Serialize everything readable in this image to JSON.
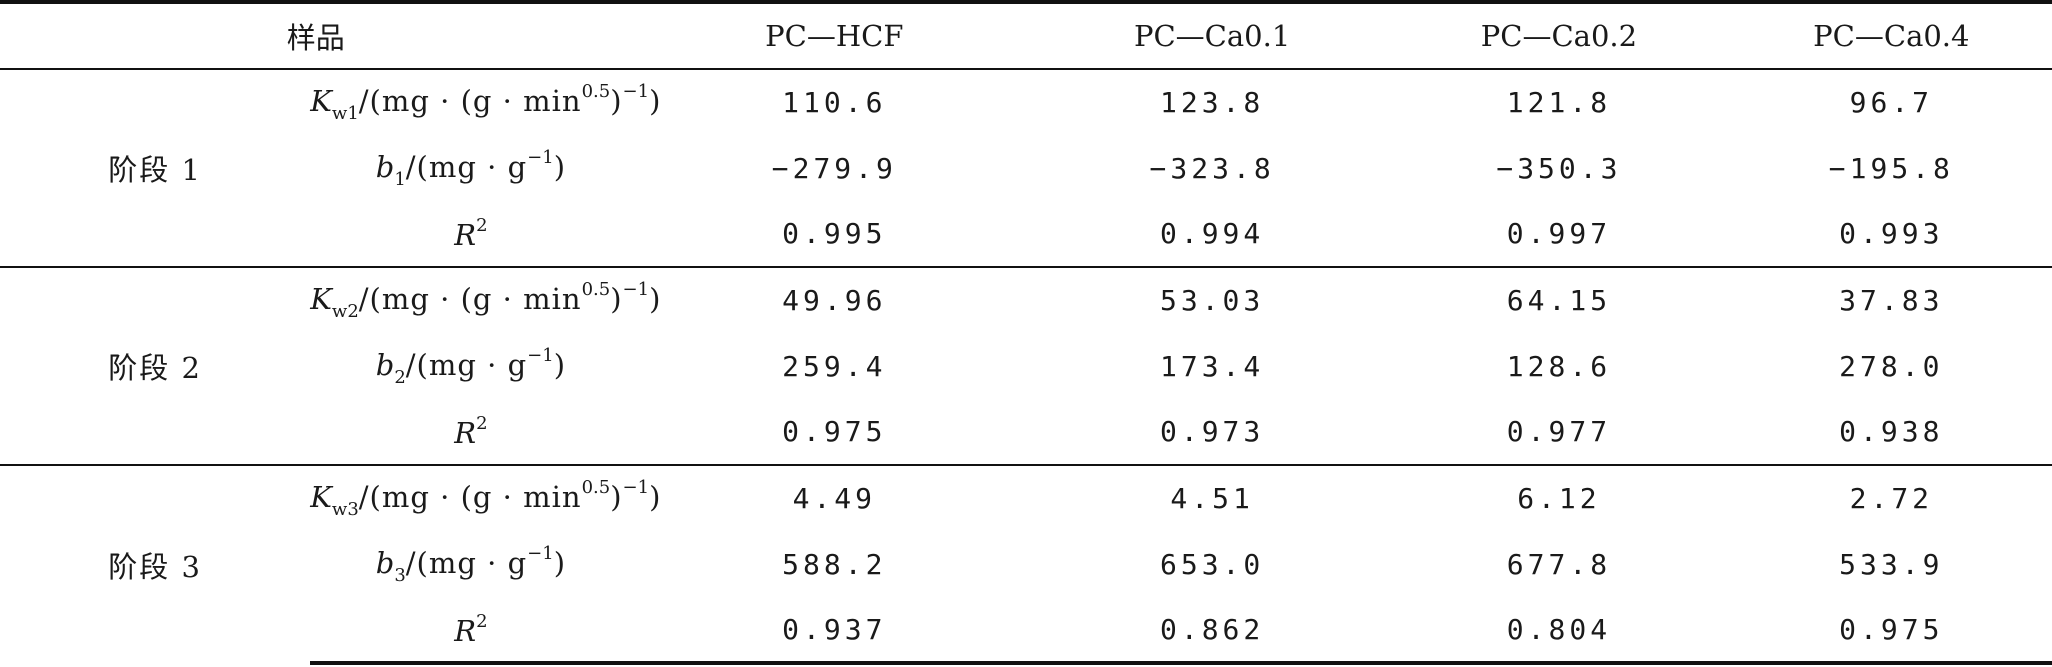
{
  "table": {
    "header": {
      "sample_label": "样品",
      "samples": [
        "PC—HCF",
        "PC—Ca0.1",
        "PC—Ca0.2",
        "PC—Ca0.4"
      ]
    },
    "stages": [
      {
        "label": "阶段 1",
        "rows": [
          {
            "symbol": "K",
            "sub": "w1",
            "unit_pre": "/(mg · (g · min",
            "unit_sup": "0.5",
            "unit_post": ")",
            "unit_sup2": "−1",
            "unit_end": ")",
            "values": [
              "110.6",
              "123.8",
              "121.8",
              "96.7"
            ]
          },
          {
            "symbol": "b",
            "sub": "1",
            "unit_pre": "/(mg · g",
            "unit_sup": "−1",
            "unit_end": ")",
            "values": [
              "−279.9",
              "−323.8",
              "−350.3",
              "−195.8"
            ]
          },
          {
            "symbol": "R",
            "sup": "2",
            "values": [
              "0.995",
              "0.994",
              "0.997",
              "0.993"
            ]
          }
        ]
      },
      {
        "label": "阶段 2",
        "rows": [
          {
            "symbol": "K",
            "sub": "w2",
            "unit_pre": "/(mg · (g · min",
            "unit_sup": "0.5",
            "unit_post": ")",
            "unit_sup2": "−1",
            "unit_end": ")",
            "values": [
              "49.96",
              "53.03",
              "64.15",
              "37.83"
            ]
          },
          {
            "symbol": "b",
            "sub": "2",
            "unit_pre": "/(mg · g",
            "unit_sup": "−1",
            "unit_end": ")",
            "values": [
              "259.4",
              "173.4",
              "128.6",
              "278.0"
            ]
          },
          {
            "symbol": "R",
            "sup": "2",
            "values": [
              "0.975",
              "0.973",
              "0.977",
              "0.938"
            ]
          }
        ]
      },
      {
        "label": "阶段 3",
        "rows": [
          {
            "symbol": "K",
            "sub": "w3",
            "unit_pre": "/(mg · (g · min",
            "unit_sup": "0.5",
            "unit_post": ")",
            "unit_sup2": "−1",
            "unit_end": ")",
            "values": [
              "4.49",
              "4.51",
              "6.12",
              "2.72"
            ]
          },
          {
            "symbol": "b",
            "sub": "3",
            "unit_pre": "/(mg · g",
            "unit_sup": "−1",
            "unit_end": ")",
            "values": [
              "588.2",
              "653.0",
              "677.8",
              "533.9"
            ]
          },
          {
            "symbol": "R",
            "sup": "2",
            "values": [
              "0.937",
              "0.862",
              "0.804",
              "0.975"
            ]
          }
        ]
      }
    ]
  }
}
